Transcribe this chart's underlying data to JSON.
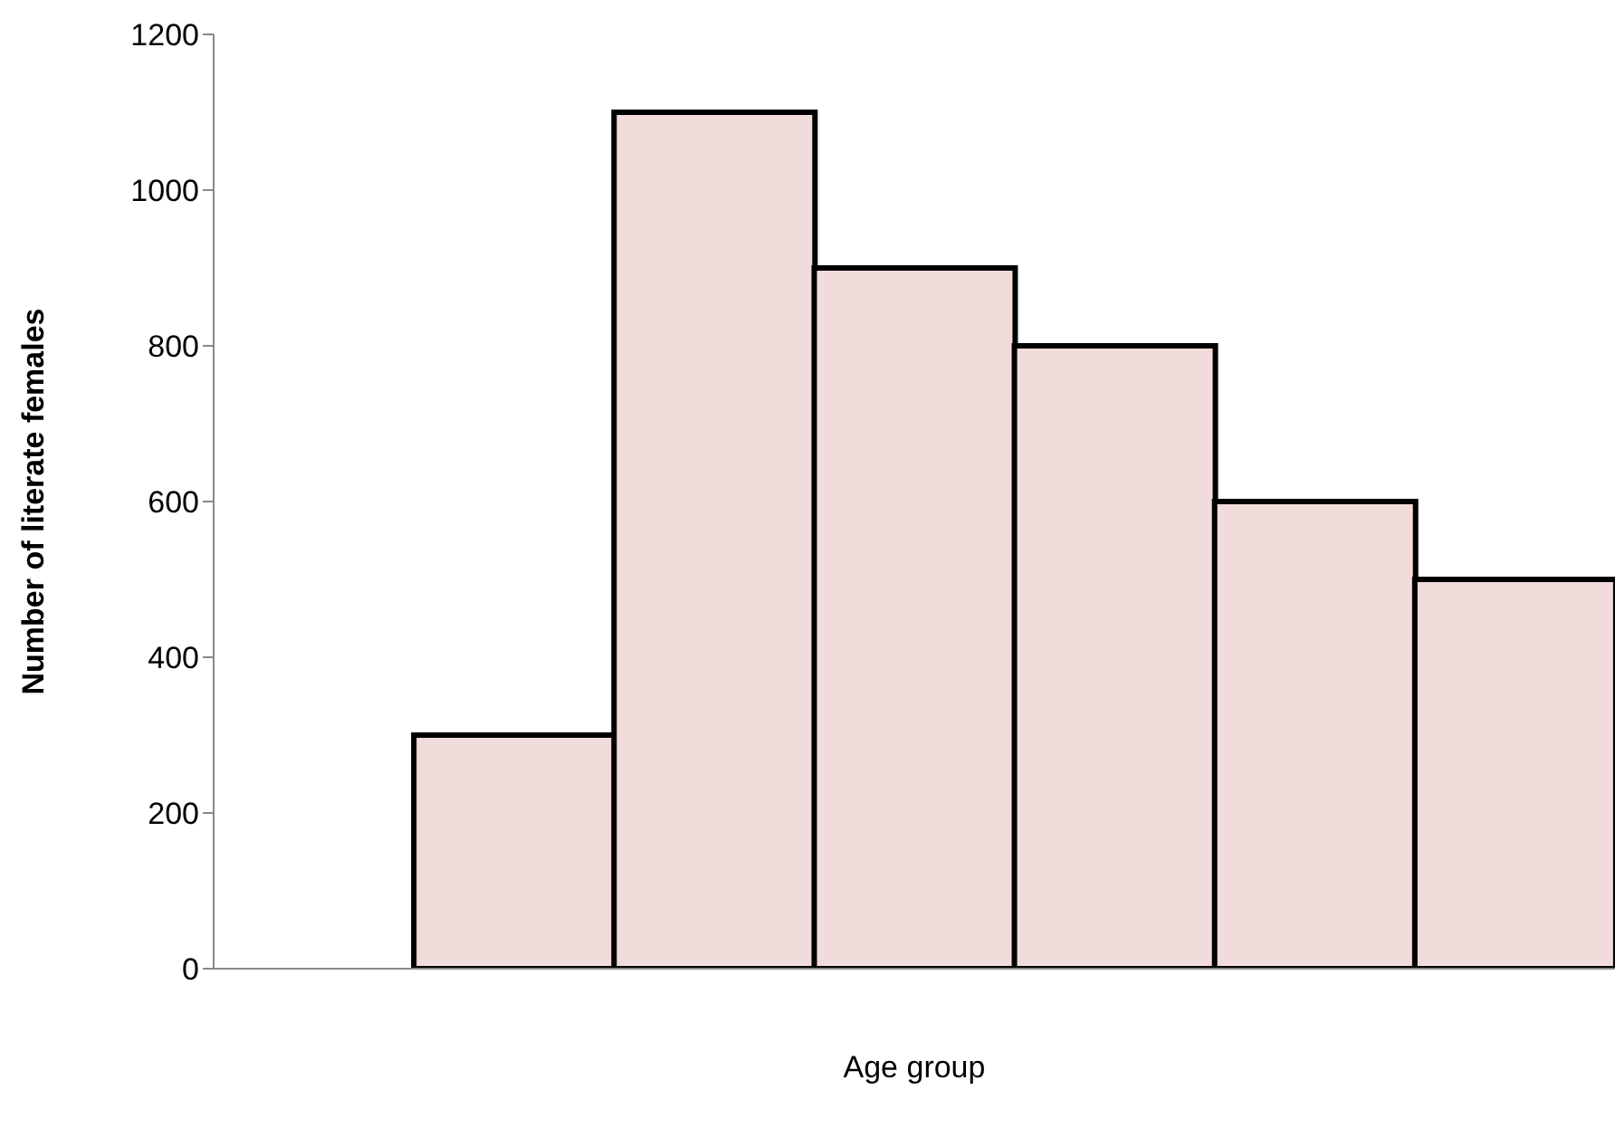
{
  "chart_data": {
    "type": "bar",
    "xlabel": "Age group",
    "ylabel": "Number of literate females",
    "categories": [
      null,
      null,
      null,
      null,
      null,
      null,
      null
    ],
    "values": [
      null,
      300,
      1100,
      900,
      800,
      600,
      500
    ],
    "color": "#f2dcdb",
    "ylim": [
      0,
      1200
    ],
    "yticks": [
      0,
      200,
      400,
      600,
      800,
      1000,
      1200
    ],
    "grid": false,
    "legend": false
  }
}
